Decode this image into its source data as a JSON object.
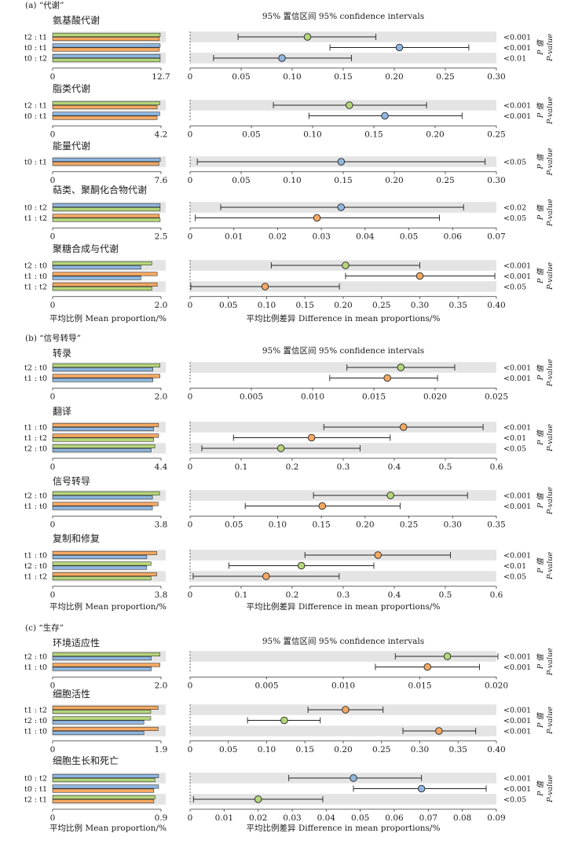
{
  "figure": {
    "mean_axis_label": "平均比例 Mean proportion/%",
    "diff_axis_label": "平均比例差异 Difference in mean proportions/%",
    "ci_label": "95% 置信区间  95% confidence intervals",
    "p_label_cn": "P 值",
    "p_label_en": "P-value"
  },
  "colors": {
    "green": "#b5d67a",
    "orange": "#f5a862",
    "blue": "#8fb6de",
    "stripe": "#e4e4e4"
  },
  "chart_data": [
    {
      "section": "(a) “代谢”",
      "title": "氨基酸代谢",
      "type": "bar",
      "mean_max": 12.7,
      "mean_max_label": "12.7",
      "diff_ticks": [
        "0",
        "0.05",
        "0.10",
        "0.15",
        "0.20",
        "0.25",
        "0.30"
      ],
      "diff_max": 0.3,
      "rows": [
        {
          "label": "t2 : t1",
          "colors": [
            "green",
            "orange"
          ],
          "bars": [
            12.6,
            12.5
          ],
          "diff": 0.115,
          "ci": [
            0.047,
            0.182
          ],
          "pt": "green",
          "p": "<0.001"
        },
        {
          "label": "t0 : t1",
          "colors": [
            "blue",
            "orange"
          ],
          "bars": [
            12.6,
            12.5
          ],
          "diff": 0.205,
          "ci": [
            0.137,
            0.273
          ],
          "pt": "blue",
          "p": "<0.001"
        },
        {
          "label": "t0 : t2",
          "colors": [
            "blue",
            "green"
          ],
          "bars": [
            12.6,
            12.6
          ],
          "diff": 0.09,
          "ci": [
            0.023,
            0.158
          ],
          "pt": "blue",
          "p": "<0.01"
        }
      ]
    },
    {
      "title": "脂类代谢",
      "type": "bar",
      "mean_max": 4.2,
      "mean_max_label": "4.2",
      "diff_ticks": [
        "0",
        "0.05",
        "0.10",
        "0.15",
        "0.20",
        "0.25"
      ],
      "diff_max": 0.25,
      "rows": [
        {
          "label": "t2 : t1",
          "colors": [
            "green",
            "orange"
          ],
          "bars": [
            4.15,
            4.05
          ],
          "diff": 0.13,
          "ci": [
            0.068,
            0.193
          ],
          "pt": "green",
          "p": "<0.001"
        },
        {
          "label": "t0 : t1",
          "colors": [
            "blue",
            "orange"
          ],
          "bars": [
            4.15,
            4.05
          ],
          "diff": 0.159,
          "ci": [
            0.097,
            0.222
          ],
          "pt": "blue",
          "p": "<0.001"
        }
      ]
    },
    {
      "title": "能量代谢",
      "type": "bar",
      "mean_max": 7.6,
      "mean_max_label": "7.6",
      "diff_ticks": [
        "0",
        "0.05",
        "0.10",
        "0.15",
        "0.20",
        "0.25",
        "0.30"
      ],
      "diff_max": 0.3,
      "rows": [
        {
          "label": "t0 : t1",
          "colors": [
            "blue",
            "orange"
          ],
          "bars": [
            7.55,
            7.45
          ],
          "diff": 0.148,
          "ci": [
            0.007,
            0.289
          ],
          "pt": "blue",
          "p": "<0.05"
        }
      ]
    },
    {
      "title": "萜类、聚酮化合物代谢",
      "type": "bar",
      "mean_max": 2.5,
      "mean_max_label": "2.5",
      "diff_ticks": [
        "0",
        "0.01",
        "0.02",
        "0.03",
        "0.04",
        "0.05",
        "0.06",
        "0.07"
      ],
      "diff_max": 0.07,
      "rows": [
        {
          "label": "t0 : t2",
          "colors": [
            "blue",
            "green"
          ],
          "bars": [
            2.48,
            2.48
          ],
          "diff": 0.0345,
          "ci": [
            0.007,
            0.0625
          ],
          "pt": "blue",
          "p": "<0.02"
        },
        {
          "label": "t1 : t2",
          "colors": [
            "orange",
            "green"
          ],
          "bars": [
            2.46,
            2.48
          ],
          "diff": 0.029,
          "ci": [
            0.0012,
            0.057
          ],
          "pt": "orange",
          "p": "<0.05"
        }
      ]
    },
    {
      "title": "聚糖合成与代谢",
      "type": "bar",
      "mean_max": 2.0,
      "mean_max_label": "2.0",
      "mean_axis": true,
      "diff_ticks": [
        "0",
        "0.05",
        "0.10",
        "0.15",
        "0.20",
        "0.25",
        "0.30",
        "0.35",
        "0.40"
      ],
      "diff_max": 0.4,
      "rows": [
        {
          "label": "t2 : t0",
          "colors": [
            "green",
            "blue"
          ],
          "bars": [
            1.83,
            1.63
          ],
          "diff": 0.203,
          "ci": [
            0.106,
            0.3
          ],
          "pt": "green",
          "p": "<0.001"
        },
        {
          "label": "t1 : t0",
          "colors": [
            "orange",
            "blue"
          ],
          "bars": [
            1.93,
            1.63
          ],
          "diff": 0.3,
          "ci": [
            0.203,
            0.398
          ],
          "pt": "orange",
          "p": "<0.001"
        },
        {
          "label": "t1 : t2",
          "colors": [
            "orange",
            "green"
          ],
          "bars": [
            1.93,
            1.83
          ],
          "diff": 0.098,
          "ci": [
            0.001,
            0.195
          ],
          "pt": "orange",
          "p": "<0.05"
        }
      ]
    },
    {
      "section": "(b) “信号转导”",
      "title": "转录",
      "type": "bar",
      "mean_max": 2.0,
      "mean_max_label": "2.0",
      "diff_ticks": [
        "0",
        "0.005",
        "0.010",
        "0.015",
        "0.020",
        "0.025"
      ],
      "diff_max": 0.025,
      "rows": [
        {
          "label": "t2 : t0",
          "colors": [
            "green",
            "blue"
          ],
          "bars": [
            1.98,
            1.85
          ],
          "diff": 0.0172,
          "ci": [
            0.0128,
            0.0216
          ],
          "pt": "green",
          "p": "<0.001"
        },
        {
          "label": "t1 : t0",
          "colors": [
            "orange",
            "blue"
          ],
          "bars": [
            1.98,
            1.85
          ],
          "diff": 0.0161,
          "ci": [
            0.0114,
            0.0202
          ],
          "pt": "orange",
          "p": "<0.001"
        }
      ]
    },
    {
      "title": "翻译",
      "type": "bar",
      "mean_max": 4.4,
      "mean_max_label": "4.4",
      "diff_ticks": [
        "0",
        "0.1",
        "0.2",
        "0.3",
        "0.4",
        "0.5",
        "0.6"
      ],
      "diff_max": 0.6,
      "rows": [
        {
          "label": "t1 : t0",
          "colors": [
            "orange",
            "blue"
          ],
          "bars": [
            4.3,
            4.1
          ],
          "diff": 0.418,
          "ci": [
            0.262,
            0.574
          ],
          "pt": "orange",
          "p": "<0.001"
        },
        {
          "label": "t1 : t2",
          "colors": [
            "orange",
            "green"
          ],
          "bars": [
            4.3,
            4.1
          ],
          "diff": 0.238,
          "ci": [
            0.085,
            0.392
          ],
          "pt": "orange",
          "p": "<0.01"
        },
        {
          "label": "t2 : t0",
          "colors": [
            "green",
            "blue"
          ],
          "bars": [
            4.15,
            4.0
          ],
          "diff": 0.178,
          "ci": [
            0.023,
            0.333
          ],
          "pt": "green",
          "p": "<0.05"
        }
      ]
    },
    {
      "title": "信号转导",
      "type": "bar",
      "mean_max": 3.8,
      "mean_max_label": "3.8",
      "diff_ticks": [
        "0",
        "0.05",
        "0.10",
        "0.15",
        "0.20",
        "0.25",
        "0.30",
        "0.35"
      ],
      "diff_max": 0.35,
      "rows": [
        {
          "label": "t2 : t0",
          "colors": [
            "green",
            "blue"
          ],
          "bars": [
            3.75,
            3.5
          ],
          "diff": 0.229,
          "ci": [
            0.141,
            0.317
          ],
          "pt": "green",
          "p": "<0.001"
        },
        {
          "label": "t1 : t0",
          "colors": [
            "orange",
            "blue"
          ],
          "bars": [
            3.7,
            3.5
          ],
          "diff": 0.151,
          "ci": [
            0.063,
            0.24
          ],
          "pt": "orange",
          "p": "<0.001"
        }
      ]
    },
    {
      "title": "复制和修复",
      "type": "bar",
      "mean_max": 3.8,
      "mean_max_label": "3.8",
      "mean_axis": true,
      "diff_ticks": [
        "0",
        "0.1",
        "0.2",
        "0.3",
        "0.4",
        "0.5",
        "0.6"
      ],
      "diff_max": 0.6,
      "rows": [
        {
          "label": "t1 : t0",
          "colors": [
            "orange",
            "blue"
          ],
          "bars": [
            3.65,
            3.3
          ],
          "diff": 0.368,
          "ci": [
            0.225,
            0.51
          ],
          "pt": "orange",
          "p": "<0.001"
        },
        {
          "label": "t2 : t0",
          "colors": [
            "green",
            "blue"
          ],
          "bars": [
            3.45,
            3.3
          ],
          "diff": 0.218,
          "ci": [
            0.076,
            0.36
          ],
          "pt": "green",
          "p": "<0.01"
        },
        {
          "label": "t1 : t2",
          "colors": [
            "orange",
            "green"
          ],
          "bars": [
            3.65,
            3.45
          ],
          "diff": 0.149,
          "ci": [
            0.006,
            0.292
          ],
          "pt": "orange",
          "p": "<0.05"
        }
      ]
    },
    {
      "section": "(c) “生存”",
      "title": "环境适应性",
      "type": "bar",
      "mean_max": 2.0,
      "mean_max_label": "2.0",
      "diff_ticks": [
        "0",
        "0.005",
        "0.010",
        "0.015",
        "0.020"
      ],
      "diff_max": 0.02,
      "rows": [
        {
          "label": "t2 : t0",
          "colors": [
            "green",
            "blue"
          ],
          "bars": [
            1.98,
            1.82
          ],
          "diff": 0.0168,
          "ci": [
            0.0134,
            0.0201
          ],
          "pt": "green",
          "p": "<0.001"
        },
        {
          "label": "t1 : t0",
          "colors": [
            "orange",
            "blue"
          ],
          "bars": [
            1.98,
            1.82
          ],
          "diff": 0.0155,
          "ci": [
            0.0121,
            0.0189
          ],
          "pt": "orange",
          "p": "<0.001"
        }
      ]
    },
    {
      "title": "细胞活性",
      "type": "bar",
      "mean_max": 1.9,
      "mean_max_label": "1.9",
      "diff_ticks": [
        "0",
        "0.05",
        "0.10",
        "0.15",
        "0.20",
        "0.25",
        "0.30",
        "0.35",
        "0.40"
      ],
      "diff_max": 0.4,
      "rows": [
        {
          "label": "t1 : t2",
          "colors": [
            "orange",
            "green"
          ],
          "bars": [
            1.85,
            1.72
          ],
          "diff": 0.203,
          "ci": [
            0.154,
            0.252
          ],
          "pt": "orange",
          "p": "<0.001"
        },
        {
          "label": "t2 : t0",
          "colors": [
            "green",
            "blue"
          ],
          "bars": [
            1.72,
            1.6
          ],
          "diff": 0.123,
          "ci": [
            0.075,
            0.17
          ],
          "pt": "green",
          "p": "<0.001"
        },
        {
          "label": "t1 : t0",
          "colors": [
            "orange",
            "blue"
          ],
          "bars": [
            1.85,
            1.6
          ],
          "diff": 0.325,
          "ci": [
            0.278,
            0.373
          ],
          "pt": "orange",
          "p": "<0.001"
        }
      ]
    },
    {
      "title": "细胞生长和死亡",
      "type": "bar",
      "mean_max": 0.9,
      "mean_max_label": "0.9",
      "mean_axis": true,
      "diff_ticks": [
        "0",
        "0.01",
        "0.02",
        "0.03",
        "0.04",
        "0.05",
        "0.06",
        "0.07",
        "0.08",
        "0.09"
      ],
      "diff_max": 0.09,
      "rows": [
        {
          "label": "t0 : t2",
          "colors": [
            "blue",
            "green"
          ],
          "bars": [
            0.88,
            0.85
          ],
          "diff": 0.048,
          "ci": [
            0.029,
            0.068
          ],
          "pt": "blue",
          "p": "<0.001"
        },
        {
          "label": "t0 : t1",
          "colors": [
            "blue",
            "orange"
          ],
          "bars": [
            0.88,
            0.84
          ],
          "diff": 0.068,
          "ci": [
            0.048,
            0.087
          ],
          "pt": "blue",
          "p": "<0.001"
        },
        {
          "label": "t2 : t1",
          "colors": [
            "green",
            "orange"
          ],
          "bars": [
            0.85,
            0.84
          ],
          "diff": 0.02,
          "ci": [
            0.001,
            0.039
          ],
          "pt": "green",
          "p": "<0.05"
        }
      ]
    }
  ]
}
